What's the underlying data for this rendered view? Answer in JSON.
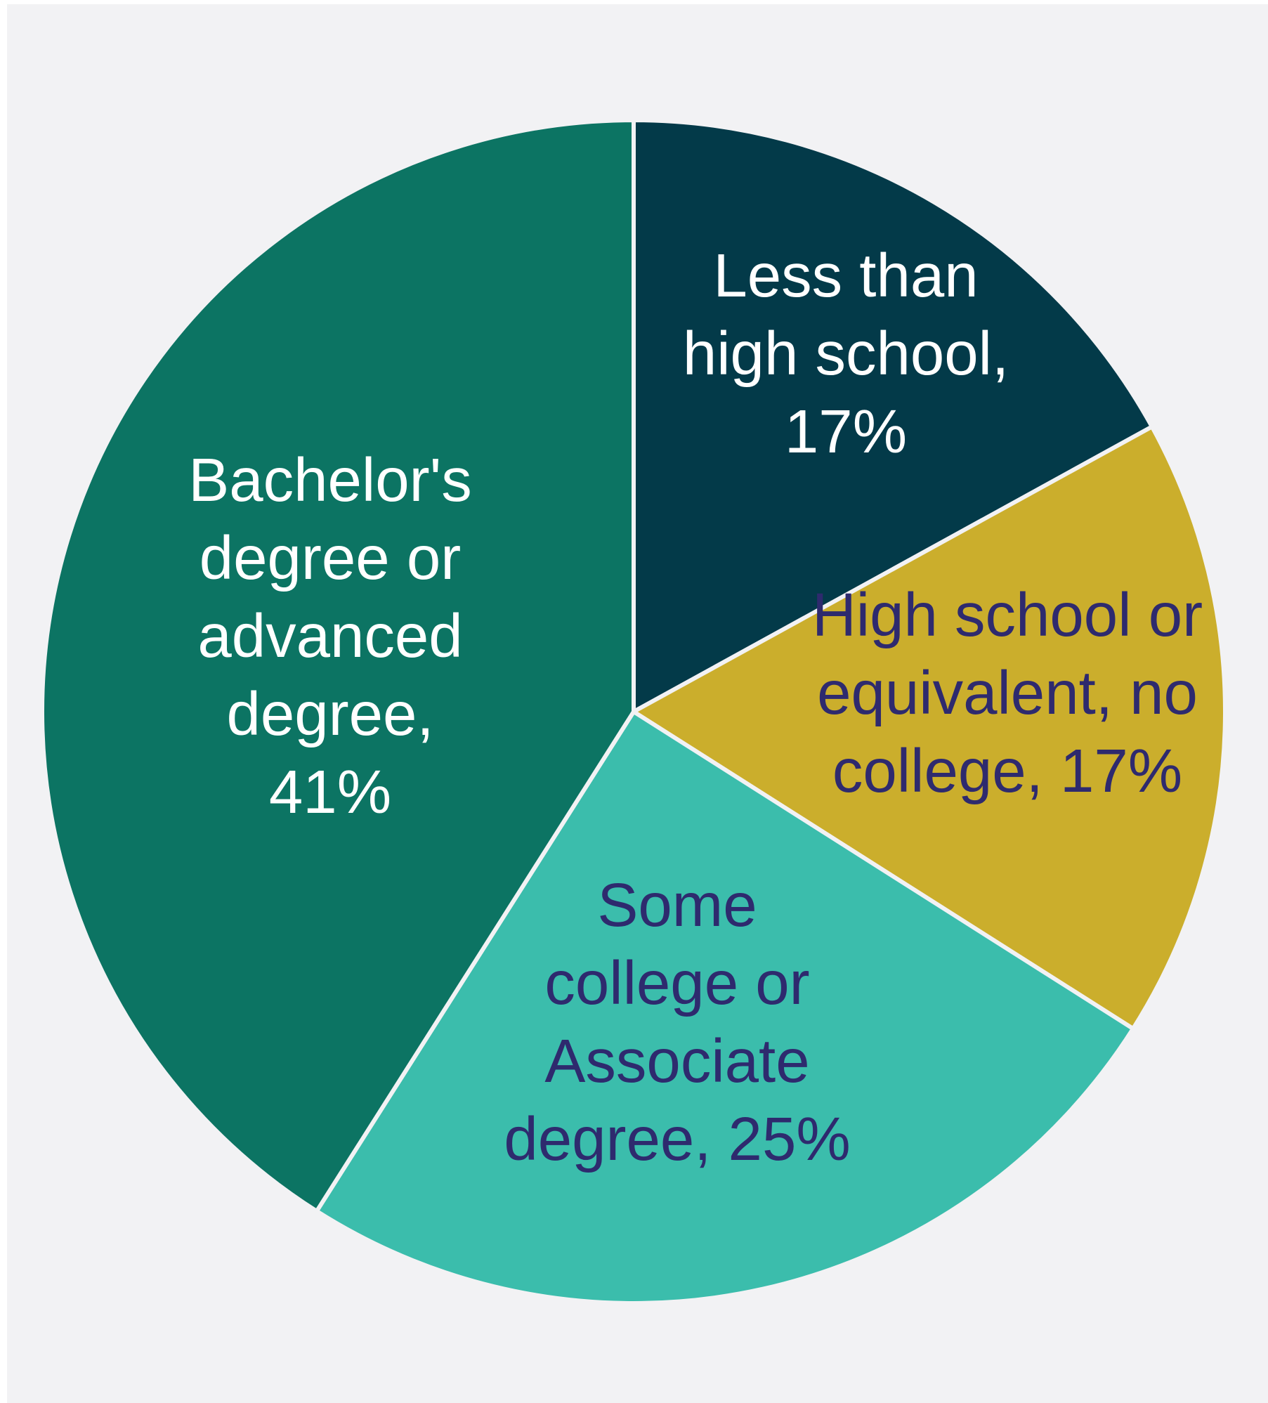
{
  "colors": {
    "background": "#f2f2f4",
    "separator": "#f2f2f4",
    "less_than_high_school": "#033a49",
    "high_school": "#cbae2c",
    "some_college": "#3bbdac",
    "bachelors": "#0c7463",
    "label_light": "#ffffff",
    "label_dark": "#2e2a6e"
  },
  "chart_data": {
    "type": "pie",
    "title": "",
    "unit": "%",
    "slices": [
      {
        "key": "less_than_high_school",
        "category": "Less than high school",
        "value": 17,
        "label_lines": [
          "Less than",
          "high school,",
          "17%"
        ],
        "color": "#033a49",
        "label_color": "#ffffff"
      },
      {
        "key": "high_school",
        "category": "High school or equivalent, no college",
        "value": 17,
        "label_lines": [
          "High school or",
          "equivalent, no",
          "college, 17%"
        ],
        "color": "#cbae2c",
        "label_color": "#2e2a6e"
      },
      {
        "key": "some_college",
        "category": "Some college or Associate degree",
        "value": 25,
        "label_lines": [
          "Some",
          "college or",
          "Associate",
          "degree, 25%"
        ],
        "color": "#3bbdac",
        "label_color": "#2e2a6e"
      },
      {
        "key": "bachelors",
        "category": "Bachelor's degree or advanced degree",
        "value": 41,
        "label_lines": [
          "Bachelor's",
          "degree or",
          "advanced",
          "degree,",
          "41%"
        ],
        "color": "#0c7463",
        "label_color": "#ffffff"
      }
    ]
  }
}
